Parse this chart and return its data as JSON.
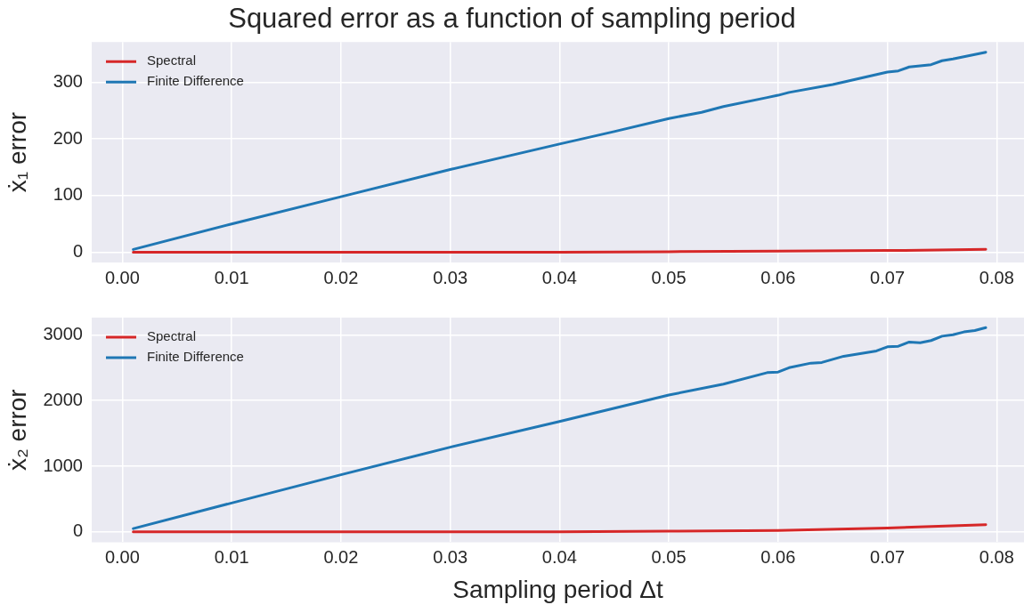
{
  "chart_data": [
    {
      "type": "line",
      "title": "Squared error as a function of sampling period",
      "ylabel": "ẋ₁ error",
      "xlim": [
        -0.0028,
        0.0825
      ],
      "xticks": [
        {
          "value": 0,
          "label": "0.00"
        },
        0.01,
        0.02,
        0.03,
        0.04,
        0.05,
        0.06,
        0.07,
        0.08
      ],
      "ylim": [
        -18,
        371
      ],
      "yticks": [
        0,
        100,
        200,
        300
      ],
      "grid": true,
      "legend": "top left",
      "line_style": "solid",
      "marker": "none",
      "series": [
        {
          "name": "Spectral",
          "color": "#d62728",
          "x": [
            0.001,
            0.01,
            0.02,
            0.03,
            0.04,
            0.05,
            0.06,
            0.07,
            0.079
          ],
          "values": [
            0,
            0,
            0,
            0,
            0,
            1,
            2,
            3,
            5
          ]
        },
        {
          "name": "Finite Difference",
          "color": "#1f77b4",
          "x": [
            0.001,
            0.01,
            0.02,
            0.03,
            0.04,
            0.045,
            0.05,
            0.053,
            0.055,
            0.059,
            0.06,
            0.061,
            0.065,
            0.07,
            0.071,
            0.072,
            0.073,
            0.074,
            0.075,
            0.076,
            0.079
          ],
          "values": [
            5,
            50,
            98,
            146,
            191,
            213,
            236,
            247,
            257,
            273,
            277,
            282,
            296,
            318,
            320,
            327,
            329,
            331,
            338,
            341,
            353
          ]
        }
      ]
    },
    {
      "type": "line",
      "xlabel": "Sampling period Δt",
      "ylabel": "ẋ₂ error",
      "xlim": [
        -0.0028,
        0.0825
      ],
      "xticks": [
        {
          "value": 0,
          "label": "0.00"
        },
        0.01,
        0.02,
        0.03,
        0.04,
        0.05,
        0.06,
        0.07,
        0.08
      ],
      "ylim": [
        -157,
        3263
      ],
      "yticks": [
        0,
        1000,
        2000,
        3000
      ],
      "grid": true,
      "legend": "top left",
      "line_style": "solid",
      "marker": "none",
      "series": [
        {
          "name": "Spectral",
          "color": "#d62728",
          "x": [
            0.001,
            0.02,
            0.03,
            0.04,
            0.05,
            0.06,
            0.07,
            0.079
          ],
          "values": [
            0,
            0,
            0,
            0,
            10,
            20,
            60,
            110
          ]
        },
        {
          "name": "Finite Difference",
          "color": "#1f77b4",
          "x": [
            0.001,
            0.01,
            0.02,
            0.03,
            0.04,
            0.05,
            0.055,
            0.059,
            0.06,
            0.061,
            0.063,
            0.064,
            0.066,
            0.069,
            0.07,
            0.071,
            0.072,
            0.073,
            0.074,
            0.075,
            0.076,
            0.077,
            0.078,
            0.079
          ],
          "values": [
            50,
            440,
            870,
            1290,
            1680,
            2084,
            2250,
            2425,
            2434,
            2500,
            2570,
            2580,
            2675,
            2756,
            2818,
            2827,
            2892,
            2880,
            2914,
            2980,
            3002,
            3045,
            3066,
            3110
          ]
        }
      ]
    }
  ]
}
